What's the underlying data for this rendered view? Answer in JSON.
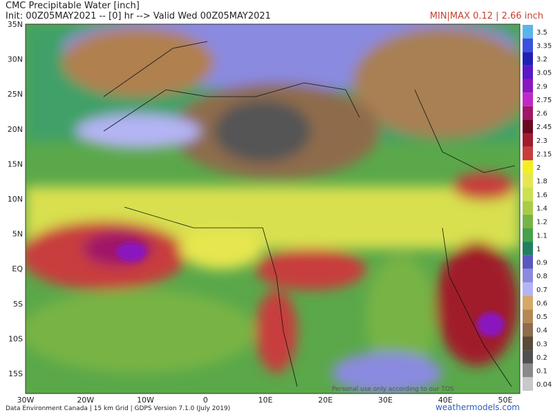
{
  "header": {
    "title": "CMC Precipitable Water [inch]",
    "init": "Init: 00Z05MAY2021 -- [0] hr --> Valid Wed 00Z05MAY2021",
    "minmax": "MIN|MAX 0.12 | 2.66 inch"
  },
  "map": {
    "lat_labels": [
      "35N",
      "30N",
      "25N",
      "20N",
      "15N",
      "10N",
      "5N",
      "EQ",
      "5S",
      "10S",
      "15S"
    ],
    "lon_labels": [
      "30W",
      "20W",
      "10W",
      "0",
      "10E",
      "20E",
      "30E",
      "40E",
      "50E"
    ],
    "notice": "Personal use only according to our TOS"
  },
  "colorbar": {
    "levels": [
      3.5,
      3.35,
      3.2,
      3.05,
      2.9,
      2.75,
      2.6,
      2.45,
      2.3,
      2.15,
      2,
      1.8,
      1.6,
      1.4,
      1.2,
      1.1,
      1,
      0.9,
      0.8,
      0.7,
      0.6,
      0.5,
      0.4,
      0.3,
      0.2,
      0.1,
      0.04
    ],
    "colors": [
      "#5ab4ec",
      "#3a50e0",
      "#2020b8",
      "#5a18c8",
      "#8a18c0",
      "#c028c8",
      "#a01868",
      "#6a0820",
      "#a01c2c",
      "#c83c3c",
      "#f0f020",
      "#e6e650",
      "#cce050",
      "#a8cc48",
      "#78b444",
      "#48a048",
      "#208060",
      "#5858c0",
      "#8a8ae0",
      "#b4b4f4",
      "#d6a868",
      "#b48854",
      "#8e6c4c",
      "#5a4a38",
      "#505050",
      "#8a8a8a",
      "#c8c8c8"
    ]
  },
  "footer": {
    "source": "Data Environment Canada | 15 km Grid | GDPS Version 7.1.0 (July 2019)",
    "brand": "weathermodels.com"
  }
}
